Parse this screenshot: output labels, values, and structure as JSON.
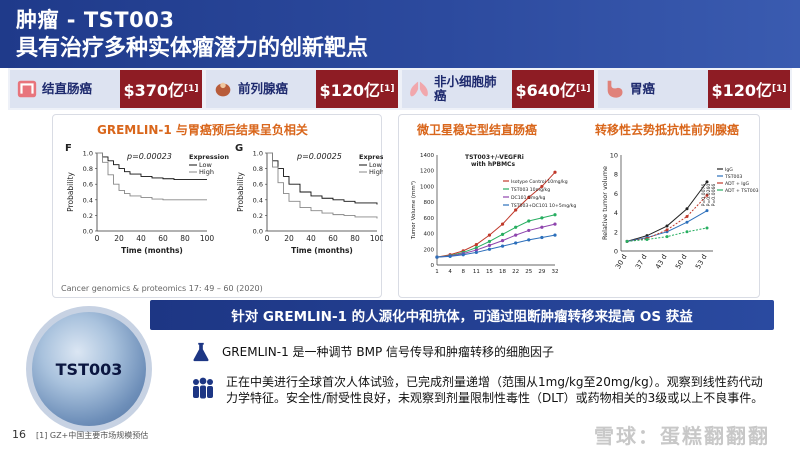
{
  "header": {
    "title": "肿瘤 - TST003",
    "subtitle": "具有治疗多种实体瘤潜力的创新靶点"
  },
  "markets": [
    {
      "label": "结直肠癌",
      "value": "$370亿",
      "ref": "[1]",
      "icon": "colon-icon"
    },
    {
      "label": "前列腺癌",
      "value": "$120亿",
      "ref": "[1]",
      "icon": "prostate-icon"
    },
    {
      "label": "非小细胞肺癌",
      "value": "$640亿",
      "ref": "[1]",
      "icon": "lung-icon"
    },
    {
      "label": "胃癌",
      "value": "$120亿",
      "ref": "[1]",
      "icon": "stomach-icon"
    }
  ],
  "survival_panel": {
    "title": "GREMLIN-1 与胃癌预后结果呈负相关",
    "citation": "Cancer genomics & proteomics 17: 49 – 60 (2020)",
    "legend_title": "Expression",
    "legend_low": "Low",
    "legend_high": "High"
  },
  "efficacy_panel": {
    "title_left": "微卫星稳定型结直肠癌",
    "title_right": "转移性去势抵抗性前列腺癌"
  },
  "banner": {
    "text": "针对 GREMLIN-1 的人源化中和抗体，可通过阻断肿瘤转移来提高 OS 获益"
  },
  "product": {
    "name": "TST003"
  },
  "info": {
    "line1": "GREMLIN-1 是一种调节 BMP 信号传导和肿瘤转移的细胞因子",
    "line2": "正在中美进行全球首次人体试验，已完成剂量递增（范围从1mg/kg至20mg/kg）。观察到线性药代动力学特征。安全性/耐受性良好，未观察到剂量限制性毒性（DLT）或药物相关的3级或以上不良事件。"
  },
  "footer": {
    "page": "16",
    "note": "[1] GZ+中国主要市场规模预估",
    "watermark": "雪球：蛋糕翻翻翻"
  },
  "chart_data": [
    {
      "type": "line",
      "panel_letter": "F",
      "annotation": "p=0.00023",
      "xlabel": "Time (months)",
      "ylabel": "Probability",
      "xlim": [
        0,
        100
      ],
      "ylim": [
        0,
        1
      ],
      "xticks": [
        0,
        20,
        40,
        60,
        80,
        100
      ],
      "yticks": [
        0,
        0.2,
        0.4,
        0.6,
        0.8,
        1.0
      ],
      "series": [
        {
          "name": "Low",
          "x": [
            0,
            5,
            10,
            15,
            20,
            25,
            30,
            40,
            50,
            60,
            70,
            80,
            100
          ],
          "y": [
            1,
            0.95,
            0.9,
            0.85,
            0.8,
            0.76,
            0.73,
            0.7,
            0.68,
            0.67,
            0.66,
            0.66,
            0.66
          ]
        },
        {
          "name": "High",
          "x": [
            0,
            5,
            10,
            15,
            20,
            25,
            30,
            40,
            50,
            60,
            70,
            80,
            100
          ],
          "y": [
            1,
            0.88,
            0.72,
            0.6,
            0.52,
            0.48,
            0.45,
            0.43,
            0.41,
            0.4,
            0.4,
            0.4,
            0.4
          ]
        }
      ]
    },
    {
      "type": "line",
      "panel_letter": "G",
      "annotation": "p=0.00025",
      "xlabel": "Time (months)",
      "ylabel": "Probability",
      "xlim": [
        0,
        100
      ],
      "ylim": [
        0,
        1
      ],
      "xticks": [
        0,
        20,
        40,
        60,
        80,
        100
      ],
      "yticks": [
        0,
        0.2,
        0.4,
        0.6,
        0.8,
        1.0
      ],
      "series": [
        {
          "name": "Low",
          "x": [
            0,
            5,
            10,
            15,
            20,
            30,
            40,
            50,
            60,
            70,
            80,
            100
          ],
          "y": [
            1,
            0.9,
            0.8,
            0.7,
            0.6,
            0.5,
            0.45,
            0.42,
            0.4,
            0.38,
            0.36,
            0.34
          ]
        },
        {
          "name": "High",
          "x": [
            0,
            5,
            10,
            15,
            20,
            30,
            40,
            50,
            60,
            70,
            80,
            100
          ],
          "y": [
            1,
            0.82,
            0.62,
            0.48,
            0.38,
            0.3,
            0.26,
            0.23,
            0.21,
            0.2,
            0.18,
            0.16
          ]
        }
      ]
    },
    {
      "type": "line",
      "inner_title": "TST003+/-VEGFRi with hPBMCs",
      "ylabel": "Tumor Volume (mm³)",
      "xticks": [
        1,
        4,
        8,
        11,
        15,
        18,
        22,
        25,
        29,
        32
      ],
      "ylim": [
        0,
        1400
      ],
      "yticks": [
        0,
        200,
        400,
        600,
        800,
        1000,
        1200,
        1400
      ],
      "series": [
        {
          "name": "Isotype Control 10mg/kg",
          "color": "#c0392b",
          "y": [
            100,
            130,
            180,
            260,
            380,
            520,
            700,
            860,
            1000,
            1180
          ]
        },
        {
          "name": "TST003 10mg/kg",
          "color": "#27ae60",
          "y": [
            100,
            120,
            160,
            220,
            300,
            390,
            480,
            560,
            600,
            640
          ]
        },
        {
          "name": "DC101 5mg/kg",
          "color": "#8e44ad",
          "y": [
            100,
            115,
            145,
            190,
            250,
            310,
            380,
            440,
            480,
            520
          ]
        },
        {
          "name": "TST003+DC101 10+5mg/kg",
          "color": "#2c6fbb",
          "y": [
            100,
            110,
            130,
            160,
            200,
            240,
            280,
            320,
            350,
            380
          ]
        }
      ]
    },
    {
      "type": "line",
      "ylabel": "Relative tumor volume",
      "xticks": [
        "30 d",
        "37 d",
        "43 d",
        "50 d",
        "53 d"
      ],
      "ylim": [
        0,
        10
      ],
      "yticks": [
        0,
        2,
        4,
        6,
        8,
        10
      ],
      "annotations": [
        "P=0.0076",
        "P=0.0260",
        "P=0.0066"
      ],
      "series": [
        {
          "name": "IgG",
          "color": "#222222",
          "y": [
            1,
            1.6,
            2.6,
            4.4,
            7.2
          ]
        },
        {
          "name": "TST003",
          "color": "#2c6fbb",
          "y": [
            1,
            1.4,
            2,
            3,
            4.2
          ]
        },
        {
          "name": "ADT + IgG",
          "color": "#c0392b",
          "y": [
            1,
            1.3,
            2.2,
            3.6,
            5.8
          ]
        },
        {
          "name": "ADT + TST003",
          "color": "#27ae60",
          "y": [
            1,
            1.2,
            1.5,
            2,
            2.4
          ]
        }
      ]
    }
  ]
}
